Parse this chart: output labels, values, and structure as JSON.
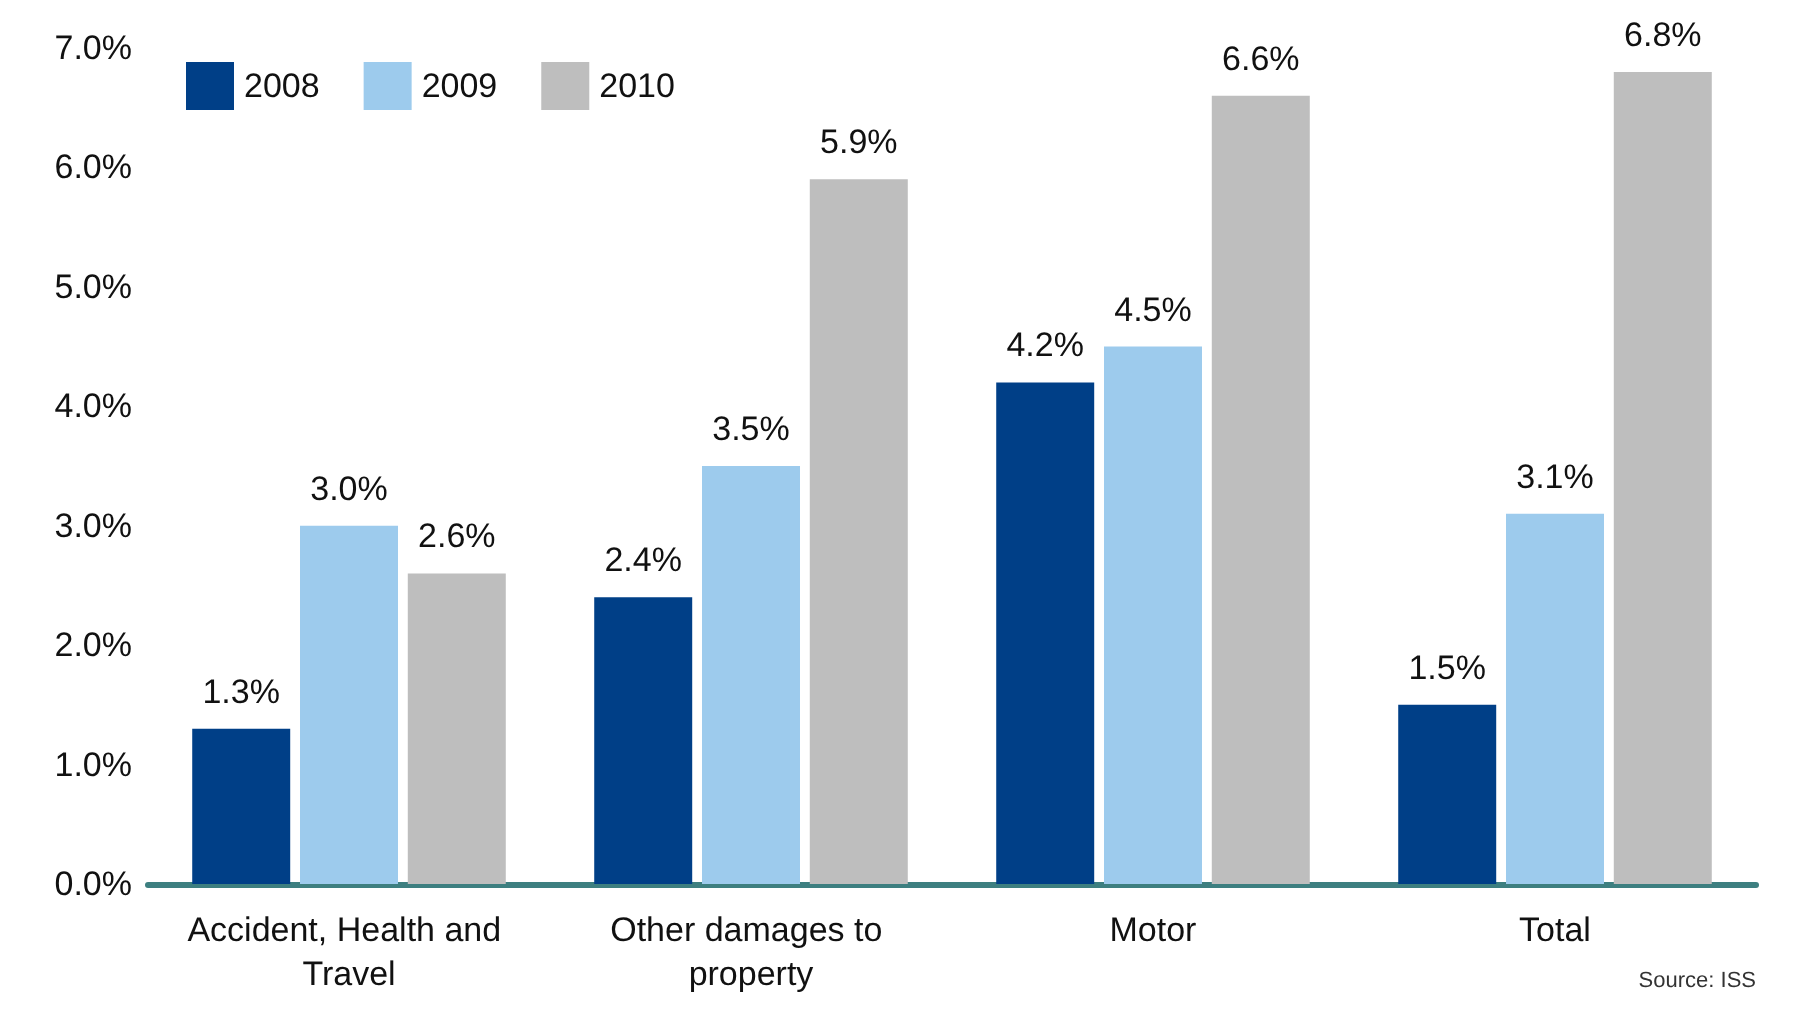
{
  "chart_data": {
    "type": "bar",
    "categories": [
      "Accident, Health and Travel",
      "Other damages to property",
      "Motor",
      "Total"
    ],
    "series": [
      {
        "name": "2008",
        "color": "#003f87",
        "values": [
          1.3,
          2.4,
          4.2,
          1.5
        ],
        "value_labels": [
          "1.3%",
          "2.4%",
          "4.2%",
          "1.5%"
        ]
      },
      {
        "name": "2009",
        "color": "#9dcbed",
        "values": [
          3.0,
          3.5,
          4.5,
          3.1
        ],
        "value_labels": [
          "3.0%",
          "3.5%",
          "4.5%",
          "3.1%"
        ]
      },
      {
        "name": "2010",
        "color": "#bebebe",
        "values": [
          2.6,
          5.9,
          6.6,
          6.8
        ],
        "value_labels": [
          "2.6%",
          "5.9%",
          "6.6%",
          "6.8%"
        ]
      }
    ],
    "ylim": [
      0,
      7
    ],
    "yticks": [
      {
        "value": 0,
        "label": "0.0%"
      },
      {
        "value": 1,
        "label": "1.0%"
      },
      {
        "value": 2,
        "label": "2.0%"
      },
      {
        "value": 3,
        "label": "3.0%"
      },
      {
        "value": 4,
        "label": "4.0%"
      },
      {
        "value": 5,
        "label": "5.0%"
      },
      {
        "value": 6,
        "label": "6.0%"
      },
      {
        "value": 7,
        "label": "7.0%"
      }
    ],
    "grid": false,
    "legend": "top left",
    "annotations": [
      "Source: ISS"
    ]
  }
}
